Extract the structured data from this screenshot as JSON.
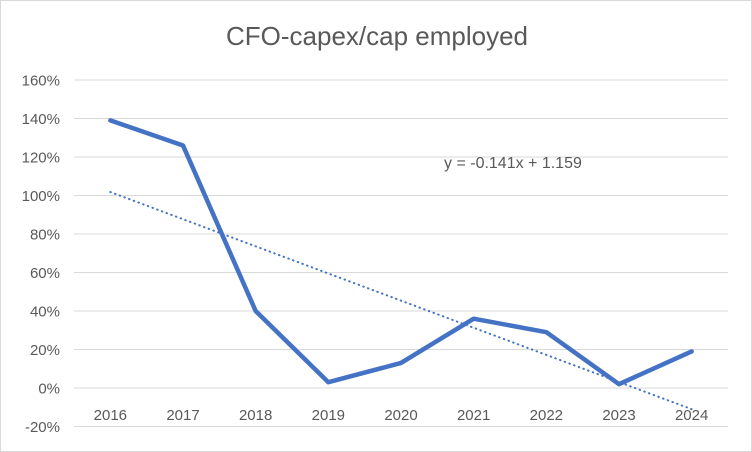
{
  "chart_data": {
    "type": "line",
    "title": "CFO-capex/cap employed",
    "categories": [
      "2016",
      "2017",
      "2018",
      "2019",
      "2020",
      "2021",
      "2022",
      "2023",
      "2024"
    ],
    "series": [
      {
        "name": "CFO-capex/cap employed",
        "values": [
          139,
          126,
          40,
          3,
          13,
          36,
          29,
          2,
          19
        ],
        "unit": "%"
      }
    ],
    "y_axis": {
      "min": -20,
      "max": 160,
      "step": 20,
      "tick_suffix": "%"
    },
    "x_axis": {
      "tick_labels": [
        "2016",
        "2017",
        "2018",
        "2019",
        "2020",
        "2021",
        "2022",
        "2023",
        "2024"
      ]
    },
    "trendline": {
      "label": "y = -0.141x + 1.159",
      "slope": -0.141,
      "intercept": 1.159,
      "x_domain": [
        1,
        9
      ],
      "style": "dotted"
    },
    "grid": true,
    "legend": false
  },
  "colors": {
    "series_line": "#4472C4",
    "trendline": "#4472C4",
    "gridline": "#D9D9D9",
    "text": "#595959",
    "border": "#D9D9D9",
    "background": "#FFFFFF"
  }
}
